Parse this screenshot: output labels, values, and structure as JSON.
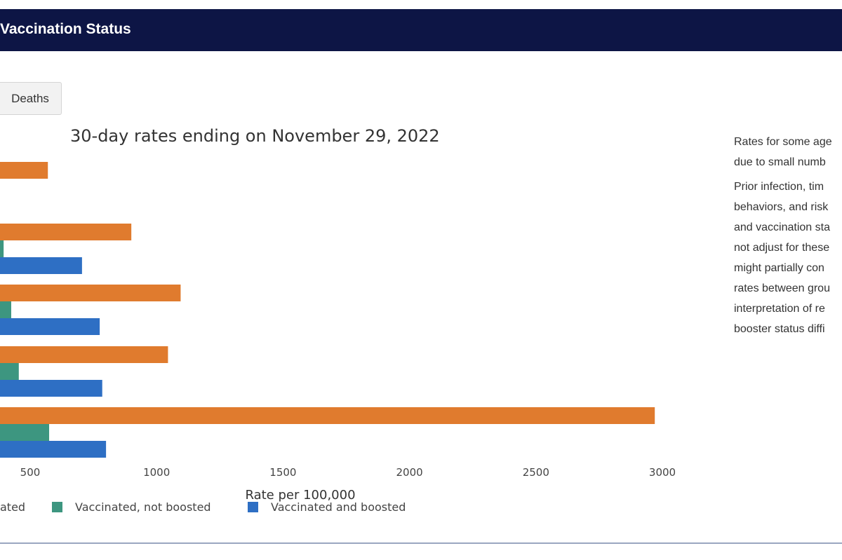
{
  "header": {
    "title": "Vaccination Status"
  },
  "tabs": [
    {
      "label": "Deaths"
    }
  ],
  "note": {
    "para1": [
      "Rates for some age",
      "due to small numb"
    ],
    "para2": [
      "Prior infection, tim",
      "behaviors, and risk",
      "and vaccination sta",
      "not adjust for these",
      "might partially con",
      "rates between grou",
      "interpretation of re",
      "booster status diffi"
    ]
  },
  "colors": {
    "header_bg": "#0d1545",
    "unvaccinated": "#e07b2e",
    "vaccinated_not_boosted": "#3d9680",
    "vaccinated_and_boosted": "#2e6fc4"
  },
  "chart_data": {
    "type": "bar",
    "orientation": "horizontal",
    "title": "30-day rates ending on November 29, 2022",
    "xlabel": "Rate per 100,000",
    "ylabel": "",
    "xticks": [
      500,
      1000,
      1500,
      2000,
      2500,
      3000
    ],
    "tick_labels": [
      "500",
      "1000",
      "1500",
      "2000",
      "2500",
      "3000"
    ],
    "series": [
      {
        "name": "ated",
        "values": [
          570,
          900,
          1095,
          1045,
          2970
        ]
      },
      {
        "name": "Vaccinated, not boosted",
        "values": [
          null,
          395,
          425,
          455,
          575
        ]
      },
      {
        "name": "Vaccinated and boosted",
        "values": [
          null,
          705,
          775,
          785,
          800
        ]
      }
    ],
    "legend_position": "bottom",
    "grid": false
  }
}
